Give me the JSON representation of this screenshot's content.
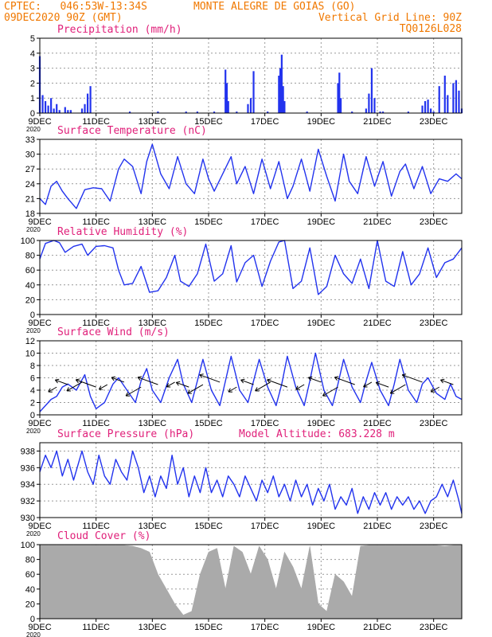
{
  "header": {
    "line1_left": "CPTEC:   046:53W-13:34S",
    "line1_right": "MONTE ALEGRE DE GOIAS (GO)",
    "line2_left": "09DEC2020 90Z (GMT)",
    "line2_right": "Vertical Grid Line: 90Z",
    "line3_right": "TQ0126L028"
  },
  "colors": {
    "header": "#f07800",
    "title": "#e0207a",
    "series": "#2233ee",
    "cloud": "#aaaaaa"
  },
  "x_axis": {
    "day_range": [
      9,
      24
    ],
    "tick_days": [
      9,
      11,
      13,
      15,
      17,
      19,
      21,
      23
    ],
    "tick_labels": [
      "9DEC",
      "11DEC",
      "13DEC",
      "15DEC",
      "17DEC",
      "19DEC",
      "21DEC",
      "23DEC"
    ],
    "year_label": "2020"
  },
  "chart_data": [
    {
      "type": "bar",
      "title": "Precipitation (mm/h)",
      "ylim": [
        0,
        5
      ],
      "yticks": [
        0,
        1,
        2,
        3,
        4,
        5
      ],
      "x_days": [
        9.0,
        9.1,
        9.2,
        9.3,
        9.4,
        9.5,
        9.6,
        9.7,
        9.9,
        10.0,
        10.1,
        10.5,
        10.6,
        10.7,
        10.8,
        12.2,
        13.2,
        14.2,
        14.6,
        15.2,
        15.6,
        15.65,
        15.7,
        16.0,
        16.4,
        16.5,
        16.6,
        17.1,
        17.5,
        17.55,
        17.6,
        17.65,
        17.7,
        18.5,
        19.6,
        19.65,
        19.7,
        20.1,
        20.6,
        20.7,
        20.8,
        20.9,
        21.1,
        21.2,
        22.1,
        22.6,
        22.7,
        22.8,
        22.9,
        23.0,
        23.2,
        23.4,
        23.5,
        23.7,
        23.8,
        23.9,
        24.0
      ],
      "values": [
        3.8,
        1.2,
        0.8,
        0.5,
        1.0,
        0.3,
        0.6,
        0.2,
        0.4,
        0.2,
        0.2,
        0.3,
        0.6,
        1.3,
        1.8,
        0.1,
        0.1,
        0.1,
        0.1,
        0.1,
        2.9,
        2.0,
        0.8,
        0.1,
        0.6,
        1.0,
        2.8,
        0.1,
        2.5,
        3.0,
        3.9,
        1.8,
        0.8,
        0.1,
        2.0,
        2.7,
        1.0,
        0.1,
        0.3,
        1.3,
        3.0,
        1.0,
        0.1,
        0.1,
        0.1,
        0.5,
        0.8,
        0.9,
        0.3,
        0.1,
        1.8,
        2.5,
        1.2,
        2.0,
        2.2,
        1.5,
        0.3
      ]
    },
    {
      "type": "line",
      "title": "Surface Temperature (nC)",
      "ylim": [
        18,
        33
      ],
      "yticks": [
        18,
        21,
        24,
        27,
        30,
        33
      ],
      "x_days": [
        9.0,
        9.2,
        9.4,
        9.6,
        9.8,
        10.0,
        10.3,
        10.6,
        10.9,
        11.2,
        11.5,
        11.8,
        12.0,
        12.3,
        12.6,
        12.8,
        13.0,
        13.3,
        13.6,
        13.9,
        14.2,
        14.5,
        14.8,
        15.0,
        15.2,
        15.5,
        15.8,
        16.0,
        16.3,
        16.6,
        16.9,
        17.2,
        17.5,
        17.8,
        18.0,
        18.3,
        18.6,
        18.9,
        19.2,
        19.5,
        19.8,
        20.0,
        20.3,
        20.6,
        20.9,
        21.2,
        21.5,
        21.8,
        22.0,
        22.3,
        22.6,
        22.9,
        23.2,
        23.5,
        23.8,
        24.0
      ],
      "values": [
        21.0,
        19.8,
        23.5,
        24.5,
        22.5,
        21.0,
        19.0,
        22.8,
        23.2,
        23.0,
        20.5,
        27.0,
        29.0,
        27.5,
        22.0,
        28.5,
        32.0,
        26.0,
        23.0,
        29.5,
        24.0,
        22.0,
        29.0,
        25.0,
        22.5,
        26.0,
        29.5,
        24.0,
        27.5,
        22.0,
        29.0,
        23.0,
        28.5,
        21.0,
        23.5,
        29.0,
        22.5,
        31.0,
        25.5,
        20.5,
        30.0,
        24.5,
        22.0,
        29.5,
        23.5,
        28.5,
        21.5,
        26.5,
        28.0,
        23.0,
        27.5,
        22.0,
        25.0,
        24.5,
        26.0,
        25.0
      ]
    },
    {
      "type": "line",
      "title": "Relative Humidity (%)",
      "ylim": [
        0,
        100
      ],
      "yticks": [
        0,
        20,
        40,
        60,
        80,
        100
      ],
      "x_days": [
        9.0,
        9.2,
        9.5,
        9.7,
        9.9,
        10.2,
        10.5,
        10.7,
        11.0,
        11.3,
        11.6,
        11.8,
        12.0,
        12.3,
        12.6,
        12.9,
        13.2,
        13.5,
        13.8,
        14.0,
        14.3,
        14.6,
        14.9,
        15.2,
        15.5,
        15.8,
        16.0,
        16.3,
        16.6,
        16.9,
        17.2,
        17.5,
        17.7,
        18.0,
        18.3,
        18.6,
        18.9,
        19.2,
        19.5,
        19.8,
        20.1,
        20.4,
        20.7,
        21.0,
        21.3,
        21.6,
        21.9,
        22.2,
        22.5,
        22.8,
        23.1,
        23.4,
        23.7,
        24.0
      ],
      "values": [
        75,
        96,
        100,
        97,
        84,
        92,
        95,
        80,
        92,
        93,
        90,
        60,
        40,
        42,
        65,
        30,
        32,
        50,
        80,
        45,
        38,
        55,
        95,
        45,
        55,
        93,
        44,
        70,
        80,
        38,
        72,
        98,
        100,
        35,
        45,
        90,
        27,
        38,
        80,
        55,
        42,
        75,
        35,
        100,
        45,
        38,
        85,
        40,
        55,
        90,
        50,
        70,
        75,
        90
      ]
    },
    {
      "type": "line",
      "title": "Surface Wind (m/s)",
      "ylim": [
        0,
        12
      ],
      "yticks": [
        0,
        2,
        4,
        6,
        8,
        10,
        12
      ],
      "x_days": [
        9.0,
        9.2,
        9.4,
        9.6,
        9.8,
        10.0,
        10.3,
        10.6,
        10.8,
        11.0,
        11.3,
        11.6,
        11.8,
        12.1,
        12.4,
        12.6,
        12.8,
        13.0,
        13.3,
        13.6,
        13.9,
        14.1,
        14.4,
        14.6,
        14.8,
        15.1,
        15.4,
        15.6,
        15.8,
        16.1,
        16.4,
        16.6,
        16.8,
        17.1,
        17.4,
        17.6,
        17.8,
        18.1,
        18.4,
        18.6,
        18.8,
        19.1,
        19.4,
        19.6,
        19.8,
        20.1,
        20.4,
        20.6,
        20.8,
        21.1,
        21.4,
        21.6,
        21.8,
        22.1,
        22.4,
        22.6,
        22.8,
        23.1,
        23.4,
        23.6,
        23.8,
        24.0
      ],
      "values": [
        0.5,
        1.5,
        2.5,
        3.0,
        4.5,
        5.0,
        4.0,
        6.5,
        3.0,
        1.0,
        2.0,
        5.0,
        6.0,
        4.0,
        2.0,
        5.5,
        7.5,
        4.0,
        2.0,
        6.0,
        9.0,
        5.0,
        2.0,
        5.5,
        9.0,
        4.0,
        1.5,
        5.5,
        9.5,
        4.0,
        2.0,
        5.5,
        9.0,
        4.5,
        1.5,
        5.0,
        9.5,
        4.5,
        1.5,
        5.5,
        10.0,
        4.0,
        1.5,
        5.0,
        9.0,
        4.5,
        2.0,
        5.5,
        8.5,
        4.0,
        1.5,
        5.0,
        9.0,
        4.0,
        2.0,
        5.0,
        6.0,
        3.5,
        2.5,
        5.0,
        3.0,
        2.5
      ]
    },
    {
      "type": "line",
      "title": "Surface Pressure (hPa)",
      "annotation": "Model Altitude: 683.228 m",
      "ylim": [
        930,
        939
      ],
      "yticks": [
        930,
        932,
        934,
        936,
        938
      ],
      "x_days": [
        9.0,
        9.2,
        9.4,
        9.6,
        9.8,
        10.0,
        10.2,
        10.5,
        10.7,
        10.9,
        11.1,
        11.3,
        11.5,
        11.7,
        11.9,
        12.1,
        12.3,
        12.5,
        12.7,
        12.9,
        13.1,
        13.3,
        13.5,
        13.7,
        13.9,
        14.1,
        14.3,
        14.5,
        14.7,
        14.9,
        15.1,
        15.3,
        15.5,
        15.7,
        15.9,
        16.1,
        16.3,
        16.5,
        16.7,
        16.9,
        17.1,
        17.3,
        17.5,
        17.7,
        17.9,
        18.1,
        18.3,
        18.5,
        18.7,
        18.9,
        19.1,
        19.3,
        19.5,
        19.7,
        19.9,
        20.1,
        20.3,
        20.5,
        20.7,
        20.9,
        21.1,
        21.3,
        21.5,
        21.7,
        21.9,
        22.1,
        22.3,
        22.5,
        22.7,
        22.9,
        23.1,
        23.3,
        23.5,
        23.7,
        23.9,
        24.0
      ],
      "values": [
        935.5,
        937.5,
        936.0,
        938.0,
        935.0,
        937.0,
        934.5,
        938.0,
        935.5,
        934.0,
        937.5,
        935.0,
        934.0,
        937.0,
        935.5,
        934.5,
        938.0,
        936.0,
        933.0,
        935.0,
        932.5,
        935.0,
        933.5,
        937.5,
        934.0,
        936.0,
        932.5,
        935.0,
        933.0,
        936.0,
        933.0,
        934.5,
        932.5,
        935.0,
        934.0,
        932.5,
        935.0,
        933.5,
        932.0,
        934.5,
        933.0,
        935.0,
        932.5,
        934.0,
        932.0,
        934.5,
        932.5,
        934.0,
        931.5,
        933.5,
        932.0,
        934.0,
        931.0,
        932.5,
        931.5,
        933.5,
        930.5,
        932.5,
        931.0,
        933.0,
        931.5,
        933.0,
        931.0,
        932.5,
        931.5,
        932.5,
        931.0,
        932.0,
        930.5,
        932.0,
        932.5,
        934.0,
        932.5,
        934.5,
        932.0,
        930.5
      ]
    },
    {
      "type": "area",
      "title": "Cloud Cover (%)",
      "ylim": [
        0,
        100
      ],
      "yticks": [
        0,
        20,
        40,
        60,
        80,
        100
      ],
      "x_days": [
        9.0,
        9.3,
        9.6,
        9.9,
        10.2,
        10.5,
        10.8,
        11.1,
        11.4,
        11.7,
        12.0,
        12.3,
        12.6,
        12.9,
        13.2,
        13.5,
        13.8,
        14.1,
        14.4,
        14.7,
        15.0,
        15.3,
        15.6,
        15.9,
        16.2,
        16.5,
        16.8,
        17.1,
        17.4,
        17.7,
        18.0,
        18.3,
        18.6,
        18.9,
        19.2,
        19.5,
        19.8,
        20.1,
        20.4,
        20.7,
        21.0,
        21.3,
        21.6,
        21.9,
        22.2,
        22.5,
        22.8,
        23.1,
        23.4,
        23.7,
        24.0
      ],
      "values": [
        99,
        99,
        99,
        99,
        99,
        99,
        99,
        99,
        99,
        99,
        99,
        98,
        95,
        90,
        60,
        40,
        20,
        5,
        10,
        60,
        90,
        95,
        40,
        98,
        90,
        60,
        98,
        80,
        40,
        90,
        70,
        40,
        98,
        20,
        10,
        60,
        50,
        30,
        98,
        99,
        99,
        99,
        99,
        99,
        99,
        99,
        99,
        99,
        98,
        99,
        99
      ]
    }
  ]
}
